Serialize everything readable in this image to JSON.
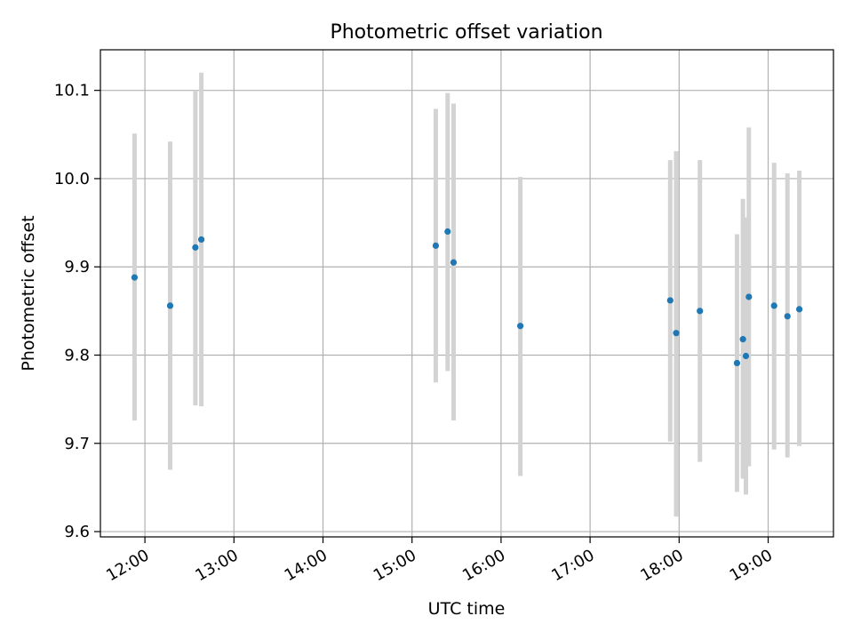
{
  "chart_data": {
    "type": "scatter",
    "title": "Photometric offset variation",
    "xlabel": "UTC time",
    "ylabel": "Photometric offset",
    "grid": true,
    "xlim": [
      "11:30",
      "19:44"
    ],
    "ylim": [
      9.594,
      10.146
    ],
    "xticks": [
      "12:00",
      "13:00",
      "14:00",
      "15:00",
      "16:00",
      "17:00",
      "18:00",
      "19:00"
    ],
    "yticks": [
      "9.6",
      "9.7",
      "9.8",
      "9.9",
      "10.0",
      "10.1"
    ],
    "point_color": "#1f77b4",
    "errorbar_color": "#d3d3d3",
    "points": [
      {
        "t": "11:53",
        "y": 9.888,
        "lo": 9.726,
        "hi": 10.051
      },
      {
        "t": "12:17",
        "y": 9.856,
        "lo": 9.67,
        "hi": 10.042
      },
      {
        "t": "12:34",
        "y": 9.922,
        "lo": 9.743,
        "hi": 10.1
      },
      {
        "t": "12:38",
        "y": 9.931,
        "lo": 9.742,
        "hi": 10.12
      },
      {
        "t": "15:16",
        "y": 9.924,
        "lo": 9.769,
        "hi": 10.079
      },
      {
        "t": "15:24",
        "y": 9.94,
        "lo": 9.782,
        "hi": 10.097
      },
      {
        "t": "15:28",
        "y": 9.905,
        "lo": 9.726,
        "hi": 10.085
      },
      {
        "t": "16:13",
        "y": 9.833,
        "lo": 9.663,
        "hi": 10.002
      },
      {
        "t": "17:54",
        "y": 9.862,
        "lo": 9.702,
        "hi": 10.021
      },
      {
        "t": "17:58",
        "y": 9.825,
        "lo": 9.617,
        "hi": 10.031
      },
      {
        "t": "18:14",
        "y": 9.85,
        "lo": 9.679,
        "hi": 10.021
      },
      {
        "t": "18:39",
        "y": 9.791,
        "lo": 9.645,
        "hi": 9.937
      },
      {
        "t": "18:43",
        "y": 9.818,
        "lo": 9.66,
        "hi": 9.977
      },
      {
        "t": "18:45",
        "y": 9.799,
        "lo": 9.642,
        "hi": 9.956
      },
      {
        "t": "18:47",
        "y": 9.866,
        "lo": 9.674,
        "hi": 10.058
      },
      {
        "t": "19:04",
        "y": 9.856,
        "lo": 9.693,
        "hi": 10.018
      },
      {
        "t": "19:13",
        "y": 9.844,
        "lo": 9.684,
        "hi": 10.006
      },
      {
        "t": "19:21",
        "y": 9.852,
        "lo": 9.697,
        "hi": 10.009
      }
    ]
  }
}
